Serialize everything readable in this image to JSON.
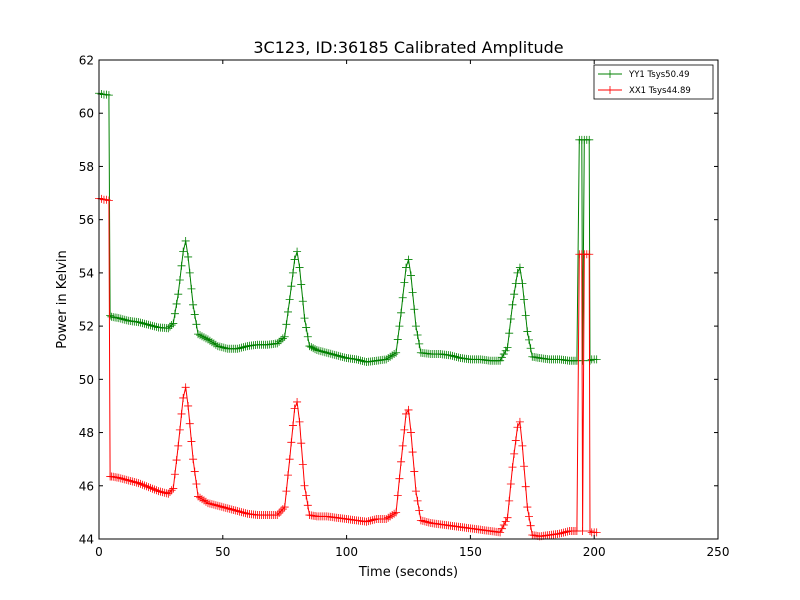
{
  "chart_data": {
    "type": "line",
    "title": "3C123, ID:36185 Calibrated Amplitude",
    "xlabel": "Time (seconds)",
    "ylabel": "Power in Kelvin",
    "xlim": [
      0,
      250
    ],
    "ylim": [
      44,
      62
    ],
    "xticks": [
      "0",
      "50",
      "100",
      "150",
      "200",
      "250"
    ],
    "yticks": [
      "44",
      "46",
      "48",
      "50",
      "52",
      "54",
      "56",
      "58",
      "60",
      "62"
    ],
    "grid": false,
    "legend_position": "top-right",
    "marker": "plus",
    "series": [
      {
        "name": "YY1 Tsys50.49",
        "color": "#008000",
        "points": [
          [
            0,
            60.75
          ],
          [
            1,
            60.72
          ],
          [
            2,
            60.7
          ],
          [
            3,
            60.7
          ],
          [
            4,
            60.68
          ],
          [
            4.5,
            52.4
          ],
          [
            5,
            52.35
          ],
          [
            8,
            52.3
          ],
          [
            12,
            52.2
          ],
          [
            16,
            52.15
          ],
          [
            20,
            52.05
          ],
          [
            24,
            51.95
          ],
          [
            28,
            51.92
          ],
          [
            30,
            52.1
          ],
          [
            32,
            53.2
          ],
          [
            34,
            54.8
          ],
          [
            35,
            55.2
          ],
          [
            36,
            54.6
          ],
          [
            38,
            52.8
          ],
          [
            40,
            51.7
          ],
          [
            44,
            51.5
          ],
          [
            48,
            51.25
          ],
          [
            52,
            51.15
          ],
          [
            56,
            51.15
          ],
          [
            60,
            51.25
          ],
          [
            64,
            51.3
          ],
          [
            68,
            51.3
          ],
          [
            72,
            51.35
          ],
          [
            75,
            51.6
          ],
          [
            77,
            53.0
          ],
          [
            79,
            54.5
          ],
          [
            80,
            54.8
          ],
          [
            81,
            54.2
          ],
          [
            83,
            52.3
          ],
          [
            85,
            51.25
          ],
          [
            88,
            51.1
          ],
          [
            92,
            51.0
          ],
          [
            96,
            50.9
          ],
          [
            100,
            50.8
          ],
          [
            104,
            50.75
          ],
          [
            108,
            50.65
          ],
          [
            112,
            50.7
          ],
          [
            116,
            50.75
          ],
          [
            120,
            51.0
          ],
          [
            122,
            52.5
          ],
          [
            124,
            54.2
          ],
          [
            125,
            54.5
          ],
          [
            126,
            53.9
          ],
          [
            128,
            52.0
          ],
          [
            130,
            51.0
          ],
          [
            134,
            50.95
          ],
          [
            138,
            50.95
          ],
          [
            142,
            50.9
          ],
          [
            146,
            50.8
          ],
          [
            150,
            50.75
          ],
          [
            154,
            50.75
          ],
          [
            158,
            50.7
          ],
          [
            162,
            50.7
          ],
          [
            165,
            51.2
          ],
          [
            167,
            52.8
          ],
          [
            169,
            54.0
          ],
          [
            170,
            54.2
          ],
          [
            171,
            53.6
          ],
          [
            173,
            51.8
          ],
          [
            175,
            50.85
          ],
          [
            178,
            50.8
          ],
          [
            182,
            50.75
          ],
          [
            186,
            50.75
          ],
          [
            190,
            50.7
          ],
          [
            193,
            50.7
          ],
          [
            194,
            59.0
          ],
          [
            195,
            59.0
          ],
          [
            195.3,
            50.7
          ],
          [
            196,
            59.0
          ],
          [
            197,
            59.0
          ],
          [
            198,
            59.0
          ],
          [
            198.3,
            50.7
          ],
          [
            199,
            50.75
          ],
          [
            200,
            50.75
          ],
          [
            201,
            50.75
          ]
        ]
      },
      {
        "name": "XX1 Tsys44.89",
        "color": "#ff0000",
        "points": [
          [
            0,
            56.8
          ],
          [
            1,
            56.78
          ],
          [
            2,
            56.75
          ],
          [
            3,
            56.75
          ],
          [
            4,
            56.72
          ],
          [
            4.5,
            46.35
          ],
          [
            5,
            46.35
          ],
          [
            8,
            46.3
          ],
          [
            12,
            46.2
          ],
          [
            16,
            46.1
          ],
          [
            20,
            45.95
          ],
          [
            24,
            45.8
          ],
          [
            28,
            45.7
          ],
          [
            30,
            45.9
          ],
          [
            32,
            47.5
          ],
          [
            34,
            49.3
          ],
          [
            35,
            49.7
          ],
          [
            36,
            49.0
          ],
          [
            38,
            47.0
          ],
          [
            40,
            45.6
          ],
          [
            44,
            45.35
          ],
          [
            48,
            45.25
          ],
          [
            52,
            45.15
          ],
          [
            56,
            45.05
          ],
          [
            60,
            44.95
          ],
          [
            64,
            44.9
          ],
          [
            68,
            44.9
          ],
          [
            72,
            44.9
          ],
          [
            75,
            45.2
          ],
          [
            77,
            47.0
          ],
          [
            79,
            48.9
          ],
          [
            80,
            49.15
          ],
          [
            81,
            48.4
          ],
          [
            83,
            46.0
          ],
          [
            85,
            44.9
          ],
          [
            88,
            44.85
          ],
          [
            92,
            44.85
          ],
          [
            96,
            44.8
          ],
          [
            100,
            44.75
          ],
          [
            104,
            44.7
          ],
          [
            108,
            44.65
          ],
          [
            112,
            44.75
          ],
          [
            116,
            44.75
          ],
          [
            120,
            45.0
          ],
          [
            122,
            46.9
          ],
          [
            124,
            48.7
          ],
          [
            125,
            48.85
          ],
          [
            126,
            48.0
          ],
          [
            128,
            45.8
          ],
          [
            130,
            44.7
          ],
          [
            134,
            44.6
          ],
          [
            138,
            44.55
          ],
          [
            142,
            44.5
          ],
          [
            146,
            44.45
          ],
          [
            150,
            44.4
          ],
          [
            154,
            44.35
          ],
          [
            158,
            44.3
          ],
          [
            162,
            44.25
          ],
          [
            165,
            44.8
          ],
          [
            167,
            46.7
          ],
          [
            169,
            48.2
          ],
          [
            170,
            48.4
          ],
          [
            171,
            47.5
          ],
          [
            173,
            45.2
          ],
          [
            175,
            44.15
          ],
          [
            178,
            44.1
          ],
          [
            182,
            44.15
          ],
          [
            186,
            44.2
          ],
          [
            190,
            44.3
          ],
          [
            193,
            44.3
          ],
          [
            194,
            54.7
          ],
          [
            195,
            54.7
          ],
          [
            195.3,
            44.3
          ],
          [
            196,
            54.7
          ],
          [
            197,
            54.7
          ],
          [
            198,
            54.7
          ],
          [
            198.3,
            44.3
          ],
          [
            199,
            44.25
          ],
          [
            200,
            44.25
          ],
          [
            201,
            44.25
          ]
        ]
      }
    ]
  }
}
